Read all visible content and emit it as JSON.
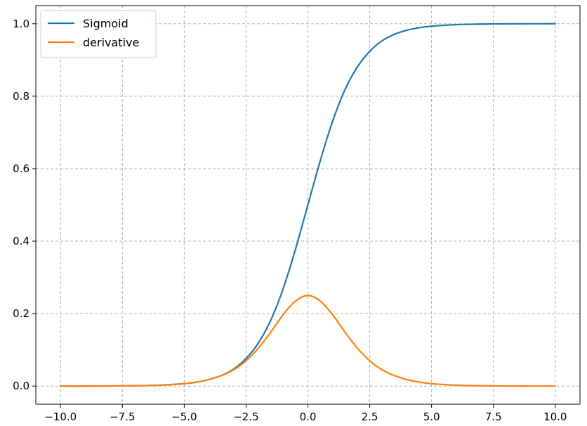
{
  "chart_data": {
    "type": "line",
    "title": "",
    "xlabel": "",
    "ylabel": "",
    "xlim": [
      -11.0,
      11.0
    ],
    "ylim": [
      -0.05,
      1.05
    ],
    "x_ticks": [
      -10.0,
      -7.5,
      -5.0,
      -2.5,
      0.0,
      2.5,
      5.0,
      7.5,
      10.0
    ],
    "x_tick_labels": [
      "−10.0",
      "−7.5",
      "−5.0",
      "−2.5",
      "0.0",
      "2.5",
      "5.0",
      "7.5",
      "10.0"
    ],
    "y_ticks": [
      0.0,
      0.2,
      0.4,
      0.6,
      0.8,
      1.0
    ],
    "y_tick_labels": [
      "0.0",
      "0.2",
      "0.4",
      "0.6",
      "0.8",
      "1.0"
    ],
    "grid": true,
    "grid_style": "dashed",
    "legend_position": "top-left",
    "x": [
      -10,
      -9,
      -8,
      -7,
      -6,
      -5,
      -4.5,
      -4,
      -3.5,
      -3,
      -2.5,
      -2,
      -1.5,
      -1,
      -0.5,
      0,
      0.5,
      1,
      1.5,
      2,
      2.5,
      3,
      3.5,
      4,
      4.5,
      5,
      6,
      7,
      8,
      9,
      10
    ],
    "series": [
      {
        "name": "Sigmoid",
        "color": "#1f77b4",
        "values": [
          5e-05,
          0.00012,
          0.00034,
          0.00091,
          0.00247,
          0.0067,
          0.011,
          0.018,
          0.029,
          0.047,
          0.076,
          0.119,
          0.182,
          0.269,
          0.378,
          0.5,
          0.622,
          0.731,
          0.818,
          0.881,
          0.924,
          0.953,
          0.971,
          0.982,
          0.989,
          0.9933,
          0.9975,
          0.9991,
          0.9997,
          0.9999,
          1.0
        ]
      },
      {
        "name": "derivative",
        "color": "#ff7f0e",
        "values": [
          5e-05,
          0.00012,
          0.00034,
          0.00091,
          0.00247,
          0.0066,
          0.011,
          0.018,
          0.029,
          0.045,
          0.07,
          0.105,
          0.149,
          0.197,
          0.235,
          0.25,
          0.235,
          0.197,
          0.149,
          0.105,
          0.07,
          0.045,
          0.029,
          0.018,
          0.011,
          0.0066,
          0.00247,
          0.00091,
          0.00034,
          0.00012,
          5e-05
        ]
      }
    ]
  }
}
